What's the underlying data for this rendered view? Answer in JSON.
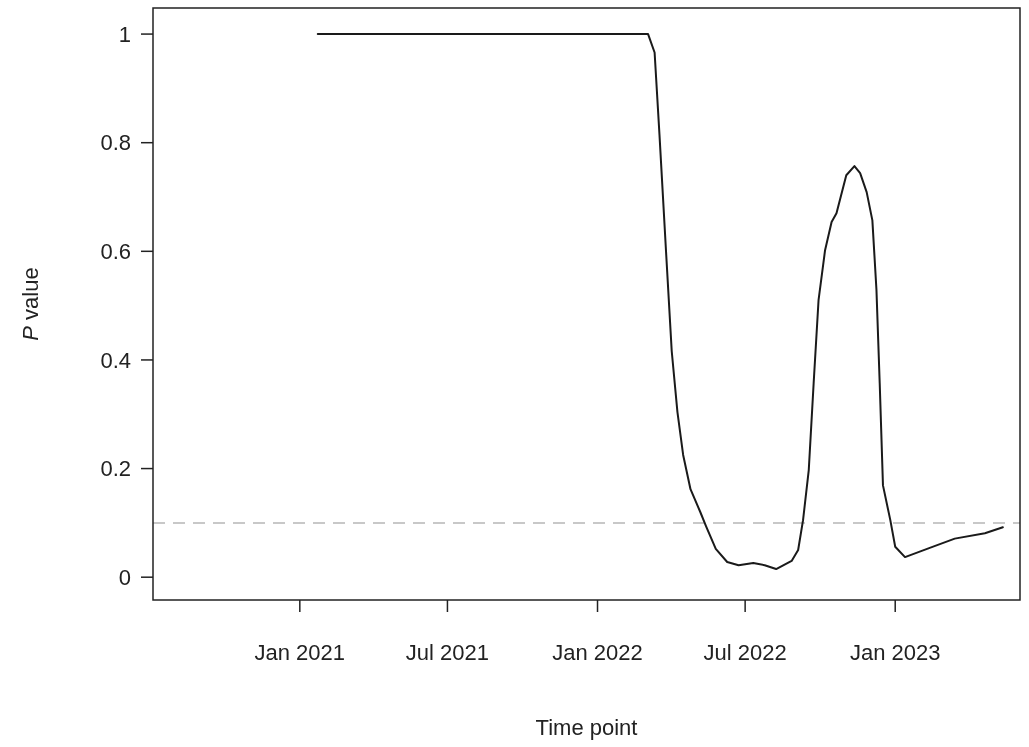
{
  "chart_data": {
    "type": "line",
    "xlabel": "Time point",
    "ylabel": "P value",
    "x": [
      "2021-01-23",
      "2022-03-04",
      "2022-03-12",
      "2022-03-18",
      "2022-03-26",
      "2022-04-02",
      "2022-04-09",
      "2022-04-16",
      "2022-04-25",
      "2022-05-07",
      "2022-05-14",
      "2022-05-26",
      "2022-06-09",
      "2022-06-23",
      "2022-07-11",
      "2022-07-25",
      "2022-08-08",
      "2022-08-27",
      "2022-09-04",
      "2022-09-10",
      "2022-09-17",
      "2022-09-23",
      "2022-09-29",
      "2022-10-07",
      "2022-10-15",
      "2022-10-21",
      "2022-11-02",
      "2022-11-12",
      "2022-11-19",
      "2022-11-27",
      "2022-12-04",
      "2022-12-09",
      "2022-12-13",
      "2022-12-17",
      "2022-12-26",
      "2023-01-01",
      "2023-01-13",
      "2023-02-14",
      "2023-03-15",
      "2023-04-21",
      "2023-05-13"
    ],
    "series": [
      {
        "color": "#1a1a1a",
        "values": [
          1,
          1,
          0.966,
          0.814,
          0.6,
          0.416,
          0.304,
          0.225,
          0.162,
          0.12,
          0.094,
          0.052,
          0.028,
          0.022,
          0.026,
          0.022,
          0.015,
          0.03,
          0.05,
          0.105,
          0.197,
          0.357,
          0.51,
          0.602,
          0.654,
          0.67,
          0.74,
          0.757,
          0.744,
          0.709,
          0.657,
          0.529,
          0.357,
          0.169,
          0.105,
          0.056,
          0.037,
          0.055,
          0.071,
          0.081,
          0.092
        ]
      }
    ],
    "xlim": [
      "2020-07-05",
      "2023-06-03"
    ],
    "xticks": [
      {
        "value": "2021-01-01",
        "label": "Jan 2021"
      },
      {
        "value": "2021-07-01",
        "label": "Jul 2021"
      },
      {
        "value": "2022-01-01",
        "label": "Jan 2022"
      },
      {
        "value": "2022-07-01",
        "label": "Jul 2022"
      },
      {
        "value": "2023-01-01",
        "label": "Jan 2023"
      }
    ],
    "ylim": [
      -0.042,
      1.048
    ],
    "yticks": [
      0,
      0.2,
      0.4,
      0.6,
      0.8,
      1
    ],
    "ref_lines": [
      {
        "axis": "y",
        "value": 0.1,
        "color": "#c8c8c8",
        "line_style": "dashed"
      }
    ],
    "grid": false,
    "line_style": "solid",
    "marker": "none"
  }
}
